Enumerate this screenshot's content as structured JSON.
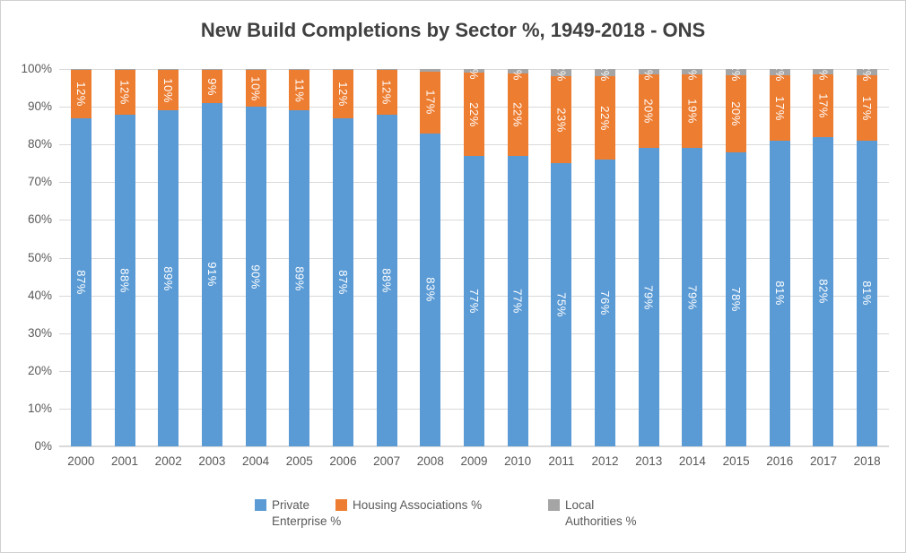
{
  "chart_data": {
    "type": "bar",
    "stacked": true,
    "title": "New Build Completions by Sector %, 1949-2018 - ONS",
    "categories": [
      "2000",
      "2001",
      "2002",
      "2003",
      "2004",
      "2005",
      "2006",
      "2007",
      "2008",
      "2009",
      "2010",
      "2011",
      "2012",
      "2013",
      "2014",
      "2015",
      "2016",
      "2017",
      "2018"
    ],
    "series": [
      {
        "name": "Private Enterprise %",
        "color": "#5B9BD5",
        "values": [
          87,
          88,
          89,
          91,
          90,
          89,
          87,
          88,
          83,
          77,
          77,
          75,
          76,
          79,
          79,
          78,
          81,
          82,
          81
        ],
        "labels": [
          "87%",
          "88%",
          "89%",
          "91%",
          "90%",
          "89%",
          "87%",
          "88%",
          "83%",
          "77%",
          "77%",
          "75%",
          "76%",
          "79%",
          "79%",
          "78%",
          "81%",
          "82%",
          "81%"
        ]
      },
      {
        "name": "Housing Associations %",
        "color": "#ED7D31",
        "values": [
          12,
          12,
          10,
          9,
          10,
          11,
          12,
          12,
          17,
          22,
          22,
          23,
          22,
          20,
          19,
          20,
          17,
          17,
          17
        ],
        "labels": [
          "12%",
          "12%",
          "10%",
          "9%",
          "10%",
          "11%",
          "12%",
          "12%",
          "17%",
          "22%",
          "22%",
          "23%",
          "22%",
          "20%",
          "19%",
          "20%",
          "17%",
          "17%",
          "17%"
        ]
      },
      {
        "name": "Local Authorities %",
        "color": "#A5A5A5",
        "values": [
          0.2,
          0.2,
          0.3,
          0.3,
          0.3,
          0.3,
          0.3,
          0.3,
          0.6,
          1.0,
          1.2,
          1.9,
          2.0,
          1.4,
          1.5,
          1.7,
          1.7,
          1.4,
          1.7
        ],
        "labels": [
          "",
          "",
          "",
          "",
          "",
          "",
          "",
          "",
          "",
          "1%",
          "1%",
          "2%",
          "2%",
          "1%",
          "2%",
          "2%",
          "2%",
          "1%",
          "2%"
        ]
      }
    ],
    "ylabel": "",
    "xlabel": "",
    "ylim": [
      0,
      100
    ],
    "y_ticks": [
      "0%",
      "10%",
      "20%",
      "30%",
      "40%",
      "50%",
      "60%",
      "70%",
      "80%",
      "90%",
      "100%"
    ],
    "grid": true,
    "legend_position": "bottom",
    "colors": {
      "background": "#FFFFFF",
      "gridline": "#D9D9D9",
      "axis_text": "#595959",
      "title_text": "#404040",
      "bar_label_text": "#FFFFFF"
    }
  }
}
